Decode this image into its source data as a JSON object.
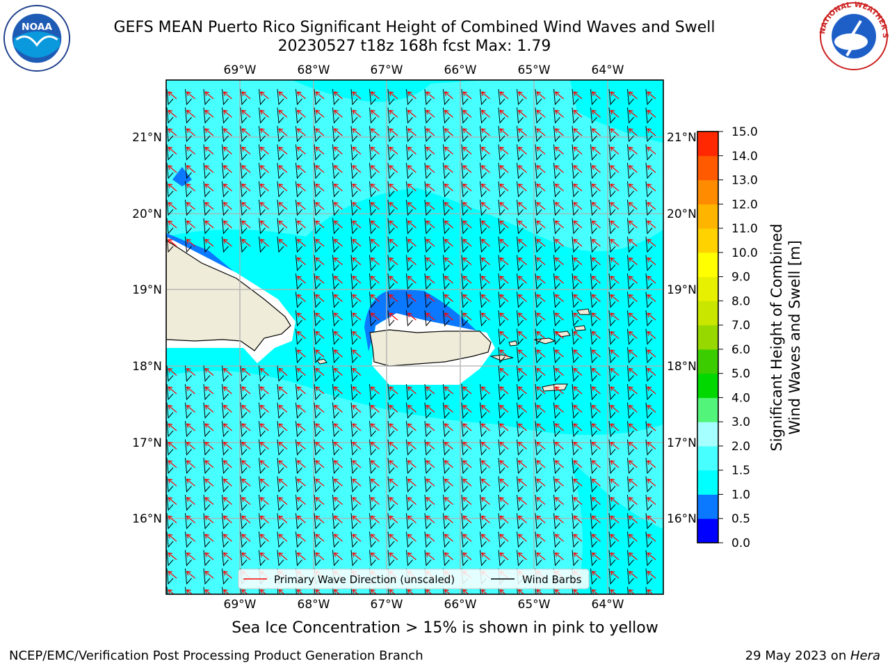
{
  "title_line1": "GEFS MEAN Puerto Rico Significant Height of Combined Wind Waves and Swell",
  "title_line2": "20230527 t18z 168h fcst   Max: 1.79",
  "longitude_labels": [
    "69°W",
    "68°W",
    "67°W",
    "66°W",
    "65°W",
    "64°W"
  ],
  "latitude_labels": [
    "21°N",
    "20°N",
    "19°N",
    "18°N",
    "17°N",
    "16°N"
  ],
  "legend": {
    "wave_direction": "Primary Wave Direction (unscaled)",
    "wind_barbs": "Wind Barbs"
  },
  "colorbar": {
    "label_line1": "Significant Height of Combined",
    "label_line2": "Wind Waves and Swell [m]",
    "ticks": [
      "0.0",
      "0.5",
      "1.0",
      "1.5",
      "2.0",
      "3.0",
      "4.0",
      "5.0",
      "6.0",
      "7.0",
      "8.0",
      "9.0",
      "10.0",
      "11.0",
      "12.0",
      "13.0",
      "14.0",
      "15.0"
    ],
    "colors": [
      "#0000ff",
      "#0a78ff",
      "#00ffff",
      "#48ffff",
      "#a6ffff",
      "#52f57a",
      "#00d800",
      "#3ccd00",
      "#96d800",
      "#c8e600",
      "#e6f000",
      "#ffff00",
      "#ffd200",
      "#ffb400",
      "#ff8c00",
      "#ff5a00",
      "#ff2800",
      "#ff0000"
    ]
  },
  "caption": "Sea Ice Concentration > 15% is shown in pink to yellow",
  "footer_left": "NCEP/EMC/Verification Post Processing Product Generation Branch",
  "footer_right_date": "29 May 2023 on ",
  "footer_right_host": "Hera",
  "logos": {
    "left": "NOAA",
    "right": "NATIONAL WEATHER SERVICE"
  },
  "field_colors": {
    "ocean_main": "#00ffff",
    "ocean_light": "#48ffff",
    "ocean_dark": "#0a78ff",
    "land": "#efecd9",
    "wave_arrow": "#ff0000",
    "wind_barb": "#000000"
  }
}
